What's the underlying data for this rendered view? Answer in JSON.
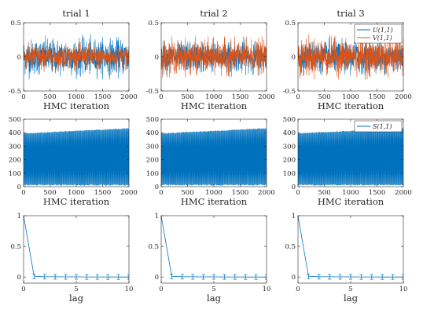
{
  "colors": {
    "blue": "#0072bd",
    "orange": "#d95319",
    "axis": "#262626",
    "grid": "#e6e6e6"
  },
  "panel_titles": [
    "trial 1",
    "trial 2",
    "trial 3"
  ],
  "chart_data": [
    {
      "row": 1,
      "type": "line",
      "xlabel": "HMC iteration",
      "xlim": [
        0,
        2000
      ],
      "ylim": [
        -0.5,
        0.5
      ],
      "xticks": [
        0,
        500,
        1000,
        1500,
        2000
      ],
      "yticks": [
        -0.5,
        0,
        0.5
      ],
      "ytick_labels": [
        "-0.5",
        "0",
        "0.5"
      ],
      "legend": {
        "panel": 3,
        "location": "top-right",
        "entries": [
          "U(1,1)",
          "V(1,1)"
        ]
      },
      "series": [
        {
          "name": "U(1,1)",
          "color": "blue",
          "values": "trace oscillating around 0, amplitude ~0.25–0.35 (2000 samples)"
        },
        {
          "name": "V(1,1)",
          "color": "orange",
          "values": "trace oscillating around 0, amplitude ~0.2–0.4 (2000 samples)"
        }
      ],
      "trials": [
        {
          "U_amp": 0.33,
          "V_amp": 0.22
        },
        {
          "U_amp": 0.27,
          "V_amp": 0.3
        },
        {
          "U_amp": 0.28,
          "V_amp": 0.33
        }
      ]
    },
    {
      "row": 2,
      "type": "line",
      "xlabel": "HMC iteration",
      "xlim": [
        0,
        2000
      ],
      "ylim": [
        0,
        500
      ],
      "xticks": [
        0,
        500,
        1000,
        1500,
        2000
      ],
      "yticks": [
        0,
        100,
        200,
        300,
        400,
        500
      ],
      "ytick_labels": [
        "0",
        "100",
        "200",
        "300",
        "400",
        "500"
      ],
      "legend": {
        "panel": 3,
        "location": "top-right",
        "entries": [
          "S(1,1)"
        ]
      },
      "series": [
        {
          "name": "S(1,1)",
          "color": "blue",
          "values": "switches between ~10 and ~400 repeatedly; upper level rises from ~395 to ~430"
        }
      ],
      "levels": {
        "low": 12,
        "high_start": 395,
        "high_end": 432
      }
    },
    {
      "row": 3,
      "type": "line",
      "xlabel": "lag",
      "xlim": [
        0,
        10
      ],
      "ylim": [
        -0.1,
        1
      ],
      "xticks": [
        0,
        5,
        10
      ],
      "yticks": [
        0,
        0.5,
        1
      ],
      "ytick_labels": [
        "0",
        "0.5",
        "1"
      ],
      "series": [
        {
          "name": "",
          "color": "blue",
          "x": [
            0,
            1,
            2,
            3,
            4,
            5,
            6,
            7,
            8,
            9,
            10
          ],
          "values": [
            1,
            0.01,
            0.005,
            0.003,
            0.002,
            0.002,
            0.001,
            0.001,
            0.0,
            0.0,
            0.0
          ]
        }
      ]
    }
  ]
}
